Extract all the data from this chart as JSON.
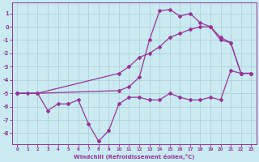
{
  "xlabel": "Windchill (Refroidissement éolien,°C)",
  "background_color": "#c8eaf0",
  "grid_color": "#b0d0d8",
  "line_color": "#993399",
  "xlim": [
    -0.5,
    23.5
  ],
  "ylim": [
    -8.8,
    1.8
  ],
  "xticks": [
    0,
    1,
    2,
    3,
    4,
    5,
    6,
    7,
    8,
    9,
    10,
    11,
    12,
    13,
    14,
    15,
    16,
    17,
    18,
    19,
    20,
    21,
    22,
    23
  ],
  "yticks": [
    1,
    0,
    -1,
    -2,
    -3,
    -4,
    -5,
    -6,
    -7,
    -8
  ],
  "series1_x": [
    0,
    1,
    2,
    3,
    4,
    5,
    6,
    7,
    8,
    9,
    10,
    11,
    12,
    13,
    14,
    15,
    16,
    17,
    18,
    19,
    20,
    21,
    22,
    23
  ],
  "series1_y": [
    -5.0,
    -5.0,
    -5.0,
    -6.3,
    -5.8,
    -5.8,
    -5.5,
    -7.3,
    -8.6,
    -7.8,
    -5.8,
    -5.3,
    -5.3,
    -5.5,
    -5.5,
    -5.0,
    -5.3,
    -5.5,
    -5.5,
    -5.3,
    -5.5,
    -3.3,
    -3.5,
    -3.5
  ],
  "series2_x": [
    0,
    2,
    10,
    11,
    12,
    13,
    14,
    15,
    16,
    17,
    18,
    19,
    20,
    21,
    22,
    23
  ],
  "series2_y": [
    -5.0,
    -5.0,
    -4.8,
    -4.5,
    -3.8,
    -1.0,
    1.2,
    1.3,
    0.8,
    1.0,
    0.3,
    0.0,
    -1.0,
    -1.2,
    -3.5,
    -3.5
  ],
  "series3_x": [
    0,
    2,
    10,
    11,
    12,
    13,
    14,
    15,
    16,
    17,
    18,
    19,
    20,
    21,
    22,
    23
  ],
  "series3_y": [
    -5.0,
    -5.0,
    -3.5,
    -3.0,
    -2.3,
    -2.0,
    -1.5,
    -0.8,
    -0.5,
    -0.2,
    0.0,
    0.0,
    -0.8,
    -1.2,
    -3.5,
    -3.5
  ]
}
